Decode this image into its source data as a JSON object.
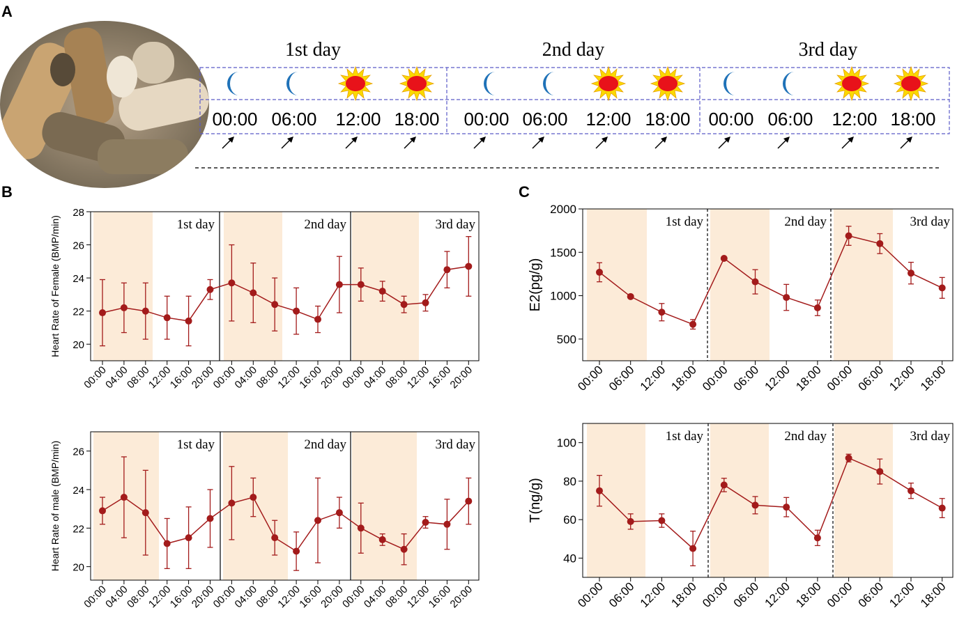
{
  "panel_labels": {
    "a": "A",
    "b": "B",
    "c": "C"
  },
  "schedule": {
    "days": [
      "1st day",
      "2nd day",
      "3rd day"
    ],
    "times": [
      "00:00",
      "06:00",
      "12:00",
      "18:00"
    ],
    "icons": [
      "moon-icon",
      "moon-icon",
      "sun-icon",
      "sun-icon"
    ],
    "arrow_icon": "arrow-icon"
  },
  "colors": {
    "series": "#a31b1b",
    "shade": "#fcebd8",
    "moon": "#1f72b8",
    "sun_fill": "#e8121a",
    "sun_ray": "#fbd900",
    "dash_box": "#5b5bc8"
  },
  "chart_data": [
    {
      "type": "line",
      "ylabel": "Heart Rate of Female (BMP/min)",
      "x": [
        "00:00",
        "04:00",
        "08:00",
        "12:00",
        "16:00",
        "20:00",
        "00:00",
        "04:00",
        "08:00",
        "12:00",
        "16:00",
        "20:00",
        "00:00",
        "04:00",
        "08:00",
        "12:00",
        "16:00",
        "20:00"
      ],
      "values": [
        21.9,
        22.2,
        22.0,
        21.6,
        21.4,
        23.3,
        23.7,
        23.1,
        22.4,
        22.0,
        21.5,
        23.6,
        23.6,
        23.2,
        22.4,
        22.5,
        24.5,
        24.7
      ],
      "err": [
        2.0,
        1.5,
        1.7,
        1.3,
        1.5,
        0.6,
        2.3,
        1.8,
        1.6,
        1.4,
        0.8,
        1.7,
        1.0,
        0.6,
        0.5,
        0.5,
        1.1,
        1.8
      ],
      "ylim": [
        19,
        28
      ],
      "yticks": [
        20,
        22,
        24,
        26,
        28
      ],
      "day_labels": [
        "1st day",
        "2nd day",
        "3rd day"
      ]
    },
    {
      "type": "line",
      "ylabel": "Heart Rate of male (BMP/min)",
      "x": [
        "00:00",
        "04:00",
        "08:00",
        "12:00",
        "16:00",
        "20:00",
        "00:00",
        "04:00",
        "08:00",
        "12:00",
        "16:00",
        "20:00",
        "00:00",
        "04:00",
        "08:00",
        "12:00",
        "16:00",
        "20:00"
      ],
      "values": [
        22.9,
        23.6,
        22.8,
        21.2,
        21.5,
        22.5,
        23.3,
        23.6,
        21.5,
        20.8,
        22.4,
        22.8,
        22.0,
        21.4,
        20.9,
        22.3,
        22.2,
        23.4
      ],
      "err": [
        0.7,
        2.1,
        2.2,
        1.3,
        1.6,
        1.5,
        1.9,
        1.0,
        0.9,
        1.0,
        2.2,
        0.8,
        1.3,
        0.3,
        0.8,
        0.3,
        1.3,
        1.2
      ],
      "ylim": [
        19.3,
        27
      ],
      "yticks": [
        20,
        22,
        24,
        26
      ],
      "day_labels": [
        "1st day",
        "2nd day",
        "3rd day"
      ]
    },
    {
      "type": "line",
      "ylabel": "E2(pg/g)",
      "x": [
        "00:00",
        "06:00",
        "12:00",
        "18:00",
        "00:00",
        "06:00",
        "12:00",
        "18:00",
        "00:00",
        "06:00",
        "12:00",
        "18:00"
      ],
      "values": [
        1270,
        990,
        810,
        670,
        1430,
        1160,
        980,
        860,
        1690,
        1600,
        1260,
        1090
      ],
      "err": [
        110,
        0,
        100,
        55,
        0,
        140,
        150,
        90,
        110,
        115,
        125,
        120
      ],
      "ylim": [
        250,
        2000
      ],
      "yticks": [
        500,
        1000,
        1500,
        2000
      ],
      "day_labels": [
        "1st day",
        "2nd day",
        "3rd day"
      ]
    },
    {
      "type": "line",
      "ylabel": "T(ng/g)",
      "x": [
        "00:00",
        "06:00",
        "12:00",
        "18:00",
        "00:00",
        "06:00",
        "12:00",
        "18:00",
        "00:00",
        "06:00",
        "12:00",
        "18:00"
      ],
      "values": [
        75,
        59,
        59.5,
        45,
        78,
        67.5,
        66.5,
        50.5,
        92,
        85,
        75,
        66
      ],
      "err": [
        8,
        4,
        3.5,
        9,
        3.5,
        4.5,
        5,
        4,
        2,
        6.5,
        4,
        5
      ],
      "ylim": [
        30,
        110
      ],
      "yticks": [
        40,
        60,
        80,
        100
      ],
      "day_labels": [
        "1st day",
        "2nd day",
        "3rd day"
      ]
    }
  ]
}
